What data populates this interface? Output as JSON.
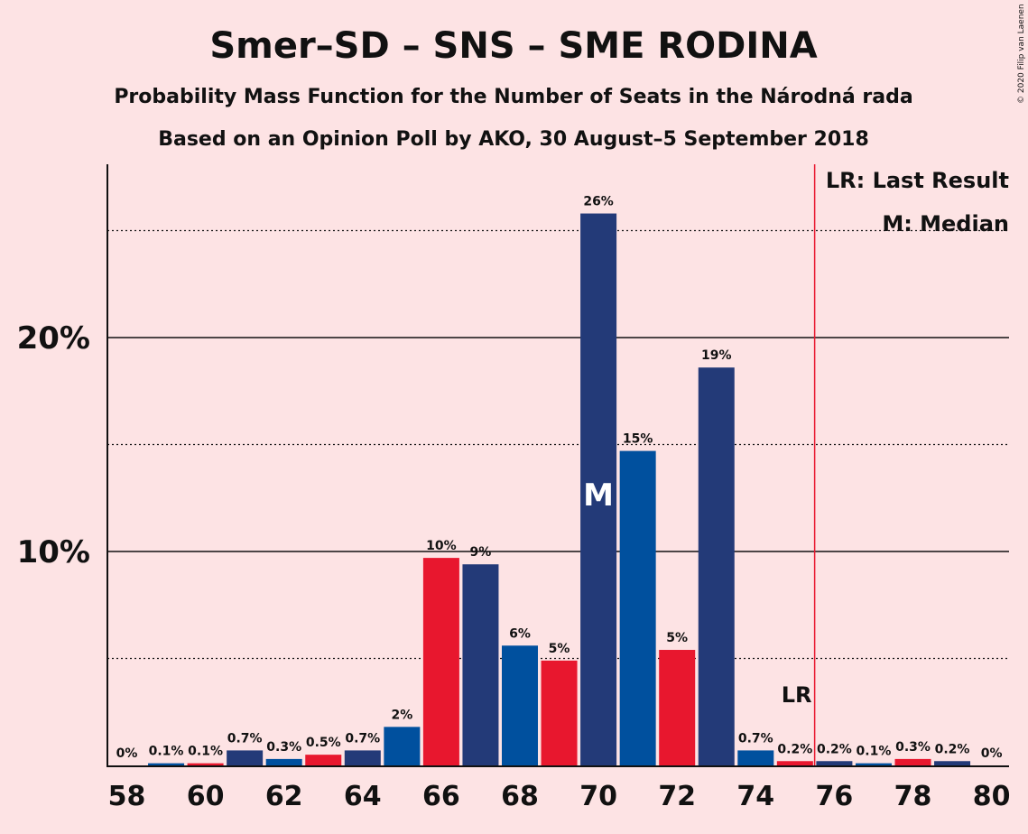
{
  "chart_data": {
    "type": "bar",
    "title": "Smer–SD – SNS – SME RODINA",
    "subtitle_line1": "Probability Mass Function for the Number of Seats in the Národná rada",
    "subtitle_line2": "Based on an Opinion Poll by AKO, 30 August–5 September 2018",
    "copyright": "© 2020 Filip van Laenen",
    "x": [
      58,
      59,
      60,
      61,
      62,
      63,
      64,
      65,
      66,
      67,
      68,
      69,
      70,
      71,
      72,
      73,
      74,
      75,
      76,
      77,
      78,
      79,
      80
    ],
    "values": [
      0,
      0.1,
      0.1,
      0.7,
      0.3,
      0.5,
      0.7,
      1.8,
      9.7,
      9.4,
      5.6,
      4.9,
      25.8,
      14.7,
      5.4,
      18.6,
      0.7,
      0.2,
      0.2,
      0.1,
      0.3,
      0.2,
      0
    ],
    "data_labels": [
      "0%",
      "0.1%",
      "0.1%",
      "0.7%",
      "0.3%",
      "0.5%",
      "0.7%",
      "2%",
      "10%",
      "9%",
      "6%",
      "5%",
      "26%",
      "15%",
      "5%",
      "19%",
      "0.7%",
      "0.2%",
      "0.2%",
      "0.1%",
      "0.3%",
      "0.2%",
      "0%"
    ],
    "bar_colors": [
      "#233a78",
      "#00509e",
      "#e8172e",
      "#233a78",
      "#00509e",
      "#e8172e",
      "#233a78",
      "#00509e",
      "#e8172e",
      "#233a78",
      "#00509e",
      "#e8172e",
      "#233a78",
      "#00509e",
      "#e8172e",
      "#233a78",
      "#00509e",
      "#e8172e",
      "#233a78",
      "#00509e",
      "#e8172e",
      "#233a78",
      "#00509e"
    ],
    "x_tick_labels": [
      "58",
      "60",
      "62",
      "64",
      "66",
      "68",
      "70",
      "72",
      "74",
      "76",
      "78",
      "80"
    ],
    "y_tick_labels": [
      "10%",
      "20%"
    ],
    "ylim": [
      0,
      28
    ],
    "major_gridlines": [
      10,
      20
    ],
    "minor_gridlines": [
      5,
      15,
      25
    ],
    "median": 70,
    "median_marker": "M",
    "last_result": 75.5,
    "last_result_marker": "LR",
    "last_result_color": "#e8172e",
    "legend": [
      "LR: Last Result",
      "M: Median"
    ],
    "legend_position": "top-right"
  }
}
